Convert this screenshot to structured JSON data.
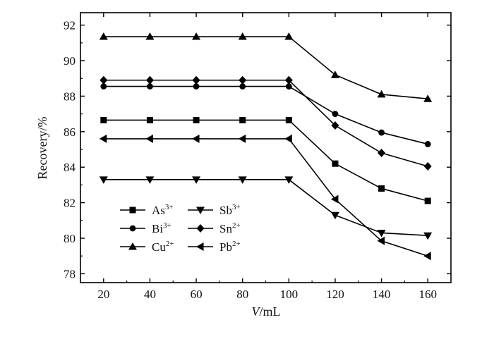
{
  "chart_data": {
    "type": "line",
    "xlabel_italic": "V",
    "xlabel_rest": "/mL",
    "ylabel": "Recovery/%",
    "xlim": [
      10,
      170
    ],
    "ylim": [
      77.5,
      92.7
    ],
    "x_ticks": [
      20,
      40,
      60,
      80,
      100,
      120,
      140,
      160
    ],
    "y_ticks": [
      78,
      80,
      82,
      84,
      86,
      88,
      90,
      92
    ],
    "x": [
      20,
      40,
      60,
      80,
      100,
      120,
      140,
      160
    ],
    "legend_position": "bottom-left",
    "grid": false,
    "series": [
      {
        "name": "As",
        "sup": "3+",
        "marker": "square",
        "values": [
          86.65,
          86.65,
          86.65,
          86.65,
          86.65,
          84.2,
          82.8,
          82.1
        ]
      },
      {
        "name": "Bi",
        "sup": "3+",
        "marker": "circle",
        "values": [
          88.55,
          88.55,
          88.55,
          88.55,
          88.55,
          87.0,
          85.95,
          85.3
        ]
      },
      {
        "name": "Cu",
        "sup": "2+",
        "marker": "triangle-up",
        "values": [
          91.35,
          91.35,
          91.35,
          91.35,
          91.35,
          89.2,
          88.1,
          87.85
        ]
      },
      {
        "name": "Sb",
        "sup": "3+",
        "marker": "triangle-down",
        "values": [
          83.3,
          83.3,
          83.3,
          83.3,
          83.3,
          81.3,
          80.3,
          80.15
        ]
      },
      {
        "name": "Sn",
        "sup": "2+",
        "marker": "diamond",
        "values": [
          88.9,
          88.9,
          88.9,
          88.9,
          88.9,
          86.35,
          84.8,
          84.05
        ]
      },
      {
        "name": "Pb",
        "sup": "2+",
        "marker": "triangle-left",
        "values": [
          85.6,
          85.6,
          85.6,
          85.6,
          85.6,
          82.2,
          79.85,
          79.0
        ]
      }
    ]
  }
}
